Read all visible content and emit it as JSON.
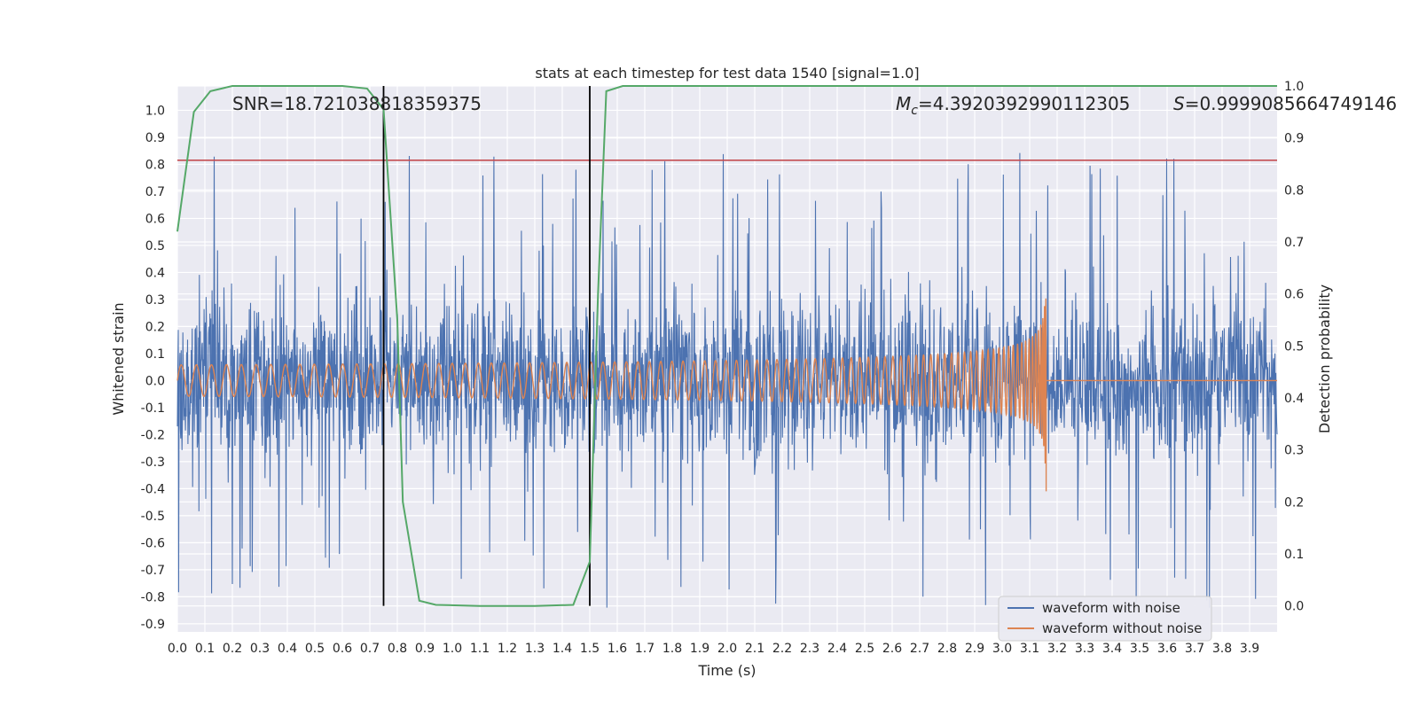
{
  "chart_data": {
    "type": "line",
    "title": "stats at each timestep for test data 1540 [signal=1.0]",
    "xlabel": "Time (s)",
    "ylabel": "Whitened strain",
    "y2label": "Detection probability",
    "xlim": [
      0.0,
      4.0
    ],
    "ylim": [
      -0.93,
      1.09
    ],
    "y2lim": [
      -0.05,
      1.0
    ],
    "x_ticks": [
      "0.0",
      "0.1",
      "0.2",
      "0.3",
      "0.4",
      "0.5",
      "0.6",
      "0.7",
      "0.8",
      "0.9",
      "1.0",
      "1.1",
      "1.2",
      "1.3",
      "1.4",
      "1.5",
      "1.6",
      "1.7",
      "1.8",
      "1.9",
      "2.0",
      "2.1",
      "2.2",
      "2.3",
      "2.4",
      "2.5",
      "2.6",
      "2.7",
      "2.8",
      "2.9",
      "3.0",
      "3.1",
      "3.2",
      "3.3",
      "3.4",
      "3.5",
      "3.6",
      "3.7",
      "3.8",
      "3.9"
    ],
    "y_ticks": [
      "1.0",
      "0.9",
      "0.8",
      "0.7",
      "0.6",
      "0.5",
      "0.4",
      "0.3",
      "0.2",
      "0.1",
      "0.0",
      "-0.1",
      "-0.2",
      "-0.3",
      "-0.4",
      "-0.5",
      "-0.6",
      "-0.7",
      "-0.8",
      "-0.9"
    ],
    "y2_ticks": [
      "1.0",
      "0.9",
      "0.8",
      "0.7",
      "0.6",
      "0.5",
      "0.4",
      "0.3",
      "0.2",
      "0.1",
      "0.0"
    ],
    "annotations": {
      "snr": "SNR=18.721038818359375",
      "mc_symbol": "M",
      "mc_sub": "c",
      "mc_value": "=4.3920392990112305",
      "s_symbol": "S",
      "s_value": "=0.9999085664749146"
    },
    "threshold_y": 0.815,
    "vertical_lines_x": [
      0.75,
      1.5
    ],
    "merger_time": 3.16,
    "noisy_envelope": {
      "base": 0.28,
      "spike_max": 1.0,
      "spike_min": -0.84
    },
    "clean_waveform": {
      "amp_start": 0.058,
      "amp_end": 0.37,
      "amp_end_neg": -0.41,
      "f_start": 18,
      "end_time": 3.16
    },
    "detection_probability": {
      "x": [
        0.0,
        0.06,
        0.12,
        0.2,
        0.3,
        0.4,
        0.5,
        0.6,
        0.69,
        0.75,
        0.8,
        0.82,
        0.88,
        0.94,
        1.1,
        1.3,
        1.44,
        1.5,
        1.53,
        1.56,
        1.62,
        1.8,
        2.0,
        3.0,
        4.0
      ],
      "y": [
        0.72,
        0.95,
        0.99,
        1.0,
        1.0,
        1.0,
        1.0,
        1.0,
        0.995,
        0.955,
        0.55,
        0.2,
        0.01,
        0.002,
        0.0,
        0.0,
        0.002,
        0.085,
        0.6,
        0.99,
        1.0,
        1.0,
        1.0,
        1.0,
        1.0
      ]
    },
    "legend": [
      {
        "label": "waveform with noise",
        "color": "#4c72b0"
      },
      {
        "label": "waveform without noise",
        "color": "#dd8452"
      }
    ],
    "colors": {
      "noise": "#4c72b0",
      "clean": "#dd8452",
      "probability": "#55a868",
      "threshold": "#c44e52",
      "vlines": "#000000",
      "background": "#eaeaf2",
      "grid": "#ffffff"
    }
  }
}
